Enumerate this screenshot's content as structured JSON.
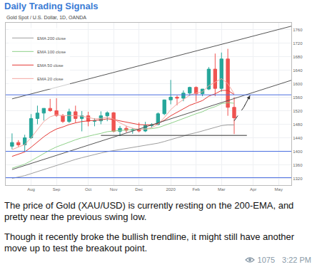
{
  "header": {
    "title": "Daily Trading Signals"
  },
  "chart_data": {
    "type": "candlestick",
    "title": "Gold Spot / U.S. Dollar, 1D, OANDA",
    "categories": [
      null,
      null,
      null,
      "Aug",
      null,
      null,
      null,
      "Sep",
      null,
      null,
      null,
      null,
      "Oct",
      null,
      null,
      null,
      "Nov",
      null,
      null,
      null,
      "Dec",
      null,
      null,
      null,
      null,
      "2020",
      null,
      null,
      null,
      "Feb",
      null,
      null,
      null,
      "Mar",
      null,
      null,
      null,
      null,
      "Apr",
      null,
      null,
      null,
      "May",
      null
    ],
    "open": [
      1415,
      1426,
      1419,
      1440,
      1497,
      1513,
      1527,
      1520,
      1506,
      1488,
      1517,
      1497,
      1505,
      1489,
      1490,
      1505,
      1514,
      1459,
      1468,
      1462,
      1464,
      1460,
      1476,
      1479,
      1511,
      1552,
      1560,
      1557,
      1572,
      1589,
      1570,
      1584,
      1643,
      1586,
      1673,
      1530,
      null,
      null,
      null,
      null,
      null,
      null,
      null,
      null
    ],
    "high": [
      1453,
      1433,
      1449,
      1510,
      1535,
      1527,
      1555,
      1557,
      1510,
      1526,
      1535,
      1519,
      1517,
      1498,
      1518,
      1518,
      1516,
      1475,
      1475,
      1469,
      1485,
      1487,
      1483,
      1515,
      1553,
      1611,
      1565,
      1580,
      1591,
      1592,
      1584,
      1649,
      1689,
      1692,
      1703,
      1560,
      null,
      null,
      null,
      null,
      null,
      null,
      null,
      null
    ],
    "low": [
      1406,
      1412,
      1400,
      1437,
      1480,
      1491,
      1517,
      1502,
      1484,
      1484,
      1485,
      1459,
      1474,
      1474,
      1480,
      1489,
      1456,
      1445,
      1456,
      1452,
      1456,
      1457,
      1470,
      1477,
      1507,
      1539,
      1536,
      1548,
      1564,
      1547,
      1563,
      1581,
      1563,
      1576,
      1505,
      1451,
      null,
      null,
      null,
      null,
      null,
      null,
      null,
      null
    ],
    "close": [
      1426,
      1419,
      1440,
      1497,
      1513,
      1527,
      1520,
      1506,
      1488,
      1517,
      1497,
      1505,
      1489,
      1490,
      1505,
      1514,
      1459,
      1468,
      1462,
      1464,
      1460,
      1476,
      1479,
      1511,
      1552,
      1560,
      1557,
      1572,
      1589,
      1570,
      1584,
      1643,
      1586,
      1673,
      1530,
      1499,
      null,
      null,
      null,
      null,
      null,
      null,
      null,
      null
    ],
    "series": [
      {
        "name": "EMA 200 close",
        "color": "#9e9e9e",
        "type": "line",
        "values": [
          1320,
          1324,
          1328,
          1334,
          1340,
          1347,
          1353,
          1359,
          1365,
          1371,
          1376,
          1381,
          1386,
          1390,
          1395,
          1399,
          1402,
          1405,
          1408,
          1411,
          1414,
          1417,
          1420,
          1424,
          1429,
          1435,
          1440,
          1445,
          1451,
          1455,
          1460,
          1466,
          1470,
          1476,
          1478,
          1478,
          null,
          null,
          null,
          null,
          null,
          null,
          null,
          null
        ]
      },
      {
        "name": "EMA 100 close",
        "color": "#8fd18a",
        "type": "line",
        "values": [
          1350,
          1356,
          1362,
          1372,
          1383,
          1394,
          1404,
          1413,
          1420,
          1428,
          1434,
          1440,
          1445,
          1449,
          1453,
          1458,
          1460,
          1462,
          1463,
          1464,
          1465,
          1466,
          1467,
          1470,
          1476,
          1483,
          1490,
          1497,
          1505,
          1511,
          1517,
          1526,
          1532,
          1541,
          1544,
          1542,
          null,
          null,
          null,
          null,
          null,
          null,
          null,
          null
        ]
      },
      {
        "name": "EMA 50 close",
        "color": "#e53935",
        "type": "line",
        "values": [
          1385,
          1391,
          1398,
          1412,
          1428,
          1443,
          1456,
          1466,
          1472,
          1479,
          1484,
          1488,
          1490,
          1491,
          1493,
          1496,
          1494,
          1490,
          1486,
          1482,
          1479,
          1478,
          1478,
          1482,
          1492,
          1505,
          1515,
          1525,
          1536,
          1543,
          1550,
          1563,
          1570,
          1580,
          1580,
          1568,
          null,
          null,
          null,
          null,
          null,
          null,
          null,
          null
        ]
      },
      {
        "name": "EMA 20 close",
        "color": "#f4a6a0",
        "type": "line",
        "values": [
          1405,
          1412,
          1420,
          1440,
          1465,
          1488,
          1502,
          1508,
          1505,
          1506,
          1505,
          1504,
          1500,
          1496,
          1497,
          1501,
          1495,
          1484,
          1475,
          1468,
          1465,
          1466,
          1470,
          1480,
          1500,
          1523,
          1540,
          1553,
          1566,
          1572,
          1576,
          1594,
          1604,
          1615,
          1600,
          1570,
          null,
          null,
          null,
          null,
          null,
          null,
          null,
          null
        ]
      }
    ],
    "lines": [
      {
        "x": [
          0,
          44
        ],
        "values": [
          1555,
          1770
        ],
        "color": "#555555",
        "line_style": "solid"
      },
      {
        "x": [
          0,
          44
        ],
        "values": [
          1346,
          1610
        ],
        "color": "#555555",
        "line_style": "solid"
      },
      {
        "x": [
          -1,
          44
        ],
        "values": [
          1567,
          1567
        ],
        "color": "#4a6ee0",
        "line_style": "solid"
      },
      {
        "x": [
          -1,
          44
        ],
        "values": [
          1400,
          1400
        ],
        "color": "#4a6ee0",
        "line_style": "solid"
      },
      {
        "x": [
          -1,
          44
        ],
        "values": [
          1322,
          1322
        ],
        "color": "#4a6ee0",
        "line_style": "solid"
      },
      {
        "x": [
          14,
          37
        ],
        "values": [
          1447,
          1447
        ],
        "color": "#333333",
        "line_style": "solid"
      },
      {
        "x": [
          35,
          36.5,
          37.5
        ],
        "values": [
          1490,
          1530,
          1565
        ],
        "color": "#333333",
        "line_style": "dashed",
        "marker": "arrow"
      }
    ],
    "xlim": [
      -1,
      44
    ],
    "ylim": [
      1300,
      1780
    ],
    "yticks": [
      1320,
      1360,
      1400,
      1440,
      1480,
      1520,
      1560,
      1600,
      1640,
      1680,
      1720,
      1760
    ],
    "grid": true,
    "legend": "top-left"
  },
  "post": {
    "paragraphs": [
      "The price of Gold (XAU/USD) is currently resting on the 200-EMA, and pretty near the previous swing low.",
      "Though it recently broke the bullish trendline, it might still have another move up to test the breakout point."
    ],
    "views": 1075,
    "time": "3:22 PM"
  }
}
